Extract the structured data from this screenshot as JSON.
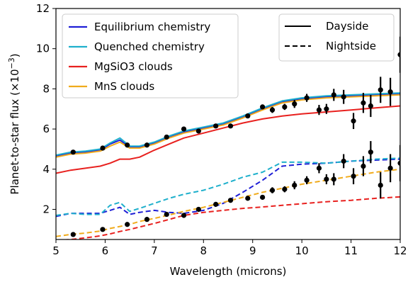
{
  "chart_data": {
    "type": "line",
    "xlabel": "Wavelength (microns)",
    "ylabel": "Planet-to-star flux (×10",
    "ylabel_exp": "−3",
    "ylabel_close": ")",
    "xlim": [
      5,
      12
    ],
    "ylim": [
      0.5,
      12
    ],
    "x_ticks": [
      5,
      6,
      7,
      8,
      9,
      10,
      11,
      12
    ],
    "y_ticks": [
      2,
      4,
      6,
      8,
      10,
      12
    ],
    "grid": false,
    "legend_models": {
      "placement": "top-left",
      "entries": [
        {
          "name": "Equilibrium chemistry",
          "color": "#1f1fd6"
        },
        {
          "name": "Quenched chemistry",
          "color": "#1fb0cc"
        },
        {
          "name": "MgSiO3 clouds",
          "color": "#e8211f"
        },
        {
          "name": "MnS clouds",
          "color": "#f0ab1c"
        }
      ]
    },
    "legend_styles": {
      "placement": "top-right",
      "entries": [
        {
          "name": "Dayside",
          "style": "solid"
        },
        {
          "name": "Nightside",
          "style": "dashed"
        }
      ]
    },
    "series": [
      {
        "model": "Equilibrium chemistry",
        "side": "Dayside",
        "color": "#1f1fd6",
        "style": "solid",
        "x": [
          5.0,
          5.3,
          5.6,
          5.9,
          6.1,
          6.3,
          6.5,
          6.7,
          7.0,
          7.3,
          7.6,
          8.0,
          8.4,
          8.8,
          9.2,
          9.6,
          10.0,
          10.5,
          11.0,
          11.5,
          12.0
        ],
        "y": [
          4.65,
          4.8,
          4.85,
          4.95,
          5.25,
          5.45,
          5.1,
          5.1,
          5.3,
          5.6,
          5.85,
          6.05,
          6.25,
          6.6,
          7.0,
          7.35,
          7.5,
          7.6,
          7.65,
          7.7,
          7.75
        ]
      },
      {
        "model": "Quenched chemistry",
        "side": "Dayside",
        "color": "#1fb0cc",
        "style": "solid",
        "x": [
          5.0,
          5.3,
          5.6,
          5.9,
          6.1,
          6.3,
          6.5,
          6.7,
          7.0,
          7.3,
          7.6,
          8.0,
          8.4,
          8.8,
          9.2,
          9.6,
          10.0,
          10.5,
          11.0,
          11.5,
          12.0
        ],
        "y": [
          4.7,
          4.85,
          4.9,
          5.0,
          5.3,
          5.55,
          5.15,
          5.15,
          5.35,
          5.65,
          5.9,
          6.1,
          6.3,
          6.65,
          7.05,
          7.4,
          7.55,
          7.65,
          7.7,
          7.75,
          7.8
        ]
      },
      {
        "model": "MgSiO3 clouds",
        "side": "Dayside",
        "color": "#e8211f",
        "style": "solid",
        "x": [
          5.0,
          5.3,
          5.6,
          5.9,
          6.1,
          6.3,
          6.5,
          6.7,
          7.0,
          7.3,
          7.6,
          8.0,
          8.4,
          8.8,
          9.2,
          9.6,
          10.0,
          10.5,
          11.0,
          11.5,
          12.0
        ],
        "y": [
          3.8,
          3.95,
          4.05,
          4.15,
          4.3,
          4.5,
          4.5,
          4.6,
          4.95,
          5.25,
          5.55,
          5.8,
          6.05,
          6.3,
          6.5,
          6.65,
          6.75,
          6.85,
          6.95,
          7.05,
          7.15
        ]
      },
      {
        "model": "MnS clouds",
        "side": "Dayside",
        "color": "#f0ab1c",
        "style": "solid",
        "x": [
          5.0,
          5.3,
          5.6,
          5.9,
          6.1,
          6.3,
          6.5,
          6.7,
          7.0,
          7.3,
          7.6,
          8.0,
          8.4,
          8.8,
          9.2,
          9.6,
          10.0,
          10.5,
          11.0,
          11.5,
          12.0
        ],
        "y": [
          4.6,
          4.75,
          4.8,
          4.9,
          5.15,
          5.35,
          5.05,
          5.05,
          5.25,
          5.55,
          5.8,
          6.0,
          6.2,
          6.55,
          6.95,
          7.3,
          7.45,
          7.55,
          7.6,
          7.65,
          7.7
        ]
      },
      {
        "model": "Equilibrium chemistry",
        "side": "Nightside",
        "color": "#1f1fd6",
        "style": "dashed",
        "x": [
          5.0,
          5.3,
          5.6,
          5.9,
          6.1,
          6.3,
          6.5,
          6.7,
          7.0,
          7.3,
          7.6,
          8.0,
          8.4,
          8.8,
          9.2,
          9.6,
          10.0,
          10.5,
          11.0,
          11.5,
          12.0
        ],
        "y": [
          1.65,
          1.8,
          1.8,
          1.8,
          1.95,
          2.1,
          1.75,
          1.85,
          1.95,
          1.85,
          1.8,
          1.95,
          2.3,
          2.85,
          3.45,
          4.15,
          4.25,
          4.3,
          4.4,
          4.45,
          4.5
        ]
      },
      {
        "model": "Quenched chemistry",
        "side": "Nightside",
        "color": "#1fb0cc",
        "style": "dashed",
        "x": [
          5.0,
          5.3,
          5.6,
          5.9,
          6.1,
          6.3,
          6.5,
          6.7,
          7.0,
          7.3,
          7.6,
          8.0,
          8.4,
          8.8,
          9.2,
          9.6,
          10.0,
          10.5,
          11.0,
          11.5,
          12.0
        ],
        "y": [
          1.7,
          1.8,
          1.75,
          1.75,
          2.2,
          2.35,
          1.9,
          2.05,
          2.3,
          2.55,
          2.75,
          2.95,
          3.25,
          3.6,
          3.85,
          4.35,
          4.35,
          4.3,
          4.4,
          4.5,
          4.55
        ]
      },
      {
        "model": "MgSiO3 clouds",
        "side": "Nightside",
        "color": "#e8211f",
        "style": "dashed",
        "x": [
          5.0,
          5.3,
          5.6,
          5.9,
          6.1,
          6.3,
          6.5,
          6.7,
          7.0,
          7.3,
          7.6,
          8.0,
          8.4,
          8.8,
          9.2,
          9.6,
          10.0,
          10.5,
          11.0,
          11.5,
          12.0
        ],
        "y": [
          0.45,
          0.5,
          0.58,
          0.68,
          0.78,
          0.9,
          1.0,
          1.12,
          1.3,
          1.5,
          1.7,
          1.85,
          1.95,
          2.05,
          2.12,
          2.2,
          2.28,
          2.38,
          2.45,
          2.55,
          2.62
        ]
      },
      {
        "model": "MnS clouds",
        "side": "Nightside",
        "color": "#f0ab1c",
        "style": "dashed",
        "x": [
          5.0,
          5.3,
          5.6,
          5.9,
          6.1,
          6.3,
          6.5,
          6.7,
          7.0,
          7.3,
          7.6,
          8.0,
          8.4,
          8.8,
          9.2,
          9.6,
          10.0,
          10.5,
          11.0,
          11.5,
          12.0
        ],
        "y": [
          0.65,
          0.75,
          0.82,
          0.92,
          1.05,
          1.15,
          1.25,
          1.4,
          1.55,
          1.72,
          1.9,
          2.1,
          2.35,
          2.6,
          2.85,
          3.05,
          3.25,
          3.45,
          3.65,
          3.85,
          4.0
        ]
      }
    ],
    "observations": [
      {
        "side": "Dayside",
        "color": "#000000",
        "points": [
          {
            "x": 5.35,
            "y": 4.85,
            "err": 0.0
          },
          {
            "x": 5.95,
            "y": 5.05,
            "err": 0.0
          },
          {
            "x": 6.45,
            "y": 5.2,
            "err": 0.0
          },
          {
            "x": 6.85,
            "y": 5.2,
            "err": 0.0
          },
          {
            "x": 7.25,
            "y": 5.6,
            "err": 0.0
          },
          {
            "x": 7.6,
            "y": 6.0,
            "err": 0.0
          },
          {
            "x": 7.9,
            "y": 5.9,
            "err": 0.0
          },
          {
            "x": 8.25,
            "y": 6.15,
            "err": 0.0
          },
          {
            "x": 8.55,
            "y": 6.15,
            "err": 0.0
          },
          {
            "x": 8.9,
            "y": 6.65,
            "err": 0.0
          },
          {
            "x": 9.2,
            "y": 7.1,
            "err": 0.1
          },
          {
            "x": 9.4,
            "y": 6.95,
            "err": 0.15
          },
          {
            "x": 9.65,
            "y": 7.1,
            "err": 0.15
          },
          {
            "x": 9.85,
            "y": 7.25,
            "err": 0.2
          },
          {
            "x": 10.1,
            "y": 7.55,
            "err": 0.2
          },
          {
            "x": 10.35,
            "y": 6.95,
            "err": 0.25
          },
          {
            "x": 10.5,
            "y": 7.0,
            "err": 0.25
          },
          {
            "x": 10.65,
            "y": 7.7,
            "err": 0.3
          },
          {
            "x": 10.85,
            "y": 7.6,
            "err": 0.35
          },
          {
            "x": 11.05,
            "y": 6.4,
            "err": 0.4
          },
          {
            "x": 11.25,
            "y": 7.3,
            "err": 0.5
          },
          {
            "x": 11.4,
            "y": 7.15,
            "err": 0.55
          },
          {
            "x": 11.6,
            "y": 7.95,
            "err": 0.65
          },
          {
            "x": 11.8,
            "y": 7.85,
            "err": 0.7
          },
          {
            "x": 12.0,
            "y": 9.7,
            "err": 0.9
          }
        ]
      },
      {
        "side": "Nightside",
        "color": "#000000",
        "points": [
          {
            "x": 5.35,
            "y": 0.75,
            "err": 0.0
          },
          {
            "x": 5.95,
            "y": 1.0,
            "err": 0.0
          },
          {
            "x": 6.45,
            "y": 1.25,
            "err": 0.0
          },
          {
            "x": 6.85,
            "y": 1.5,
            "err": 0.0
          },
          {
            "x": 7.25,
            "y": 1.75,
            "err": 0.0
          },
          {
            "x": 7.6,
            "y": 1.7,
            "err": 0.0
          },
          {
            "x": 7.9,
            "y": 2.0,
            "err": 0.0
          },
          {
            "x": 8.25,
            "y": 2.25,
            "err": 0.0
          },
          {
            "x": 8.55,
            "y": 2.45,
            "err": 0.0
          },
          {
            "x": 8.9,
            "y": 2.55,
            "err": 0.0
          },
          {
            "x": 9.2,
            "y": 2.6,
            "err": 0.1
          },
          {
            "x": 9.4,
            "y": 2.95,
            "err": 0.15
          },
          {
            "x": 9.65,
            "y": 3.0,
            "err": 0.15
          },
          {
            "x": 9.85,
            "y": 3.2,
            "err": 0.2
          },
          {
            "x": 10.1,
            "y": 3.45,
            "err": 0.2
          },
          {
            "x": 10.35,
            "y": 4.05,
            "err": 0.25
          },
          {
            "x": 10.5,
            "y": 3.5,
            "err": 0.25
          },
          {
            "x": 10.65,
            "y": 3.5,
            "err": 0.3
          },
          {
            "x": 10.85,
            "y": 4.4,
            "err": 0.35
          },
          {
            "x": 11.05,
            "y": 3.65,
            "err": 0.4
          },
          {
            "x": 11.25,
            "y": 4.15,
            "err": 0.5
          },
          {
            "x": 11.4,
            "y": 4.85,
            "err": 0.55
          },
          {
            "x": 11.6,
            "y": 3.2,
            "err": 0.65
          },
          {
            "x": 11.8,
            "y": 4.05,
            "err": 0.7
          },
          {
            "x": 12.0,
            "y": 4.3,
            "err": 0.9
          }
        ]
      }
    ]
  }
}
